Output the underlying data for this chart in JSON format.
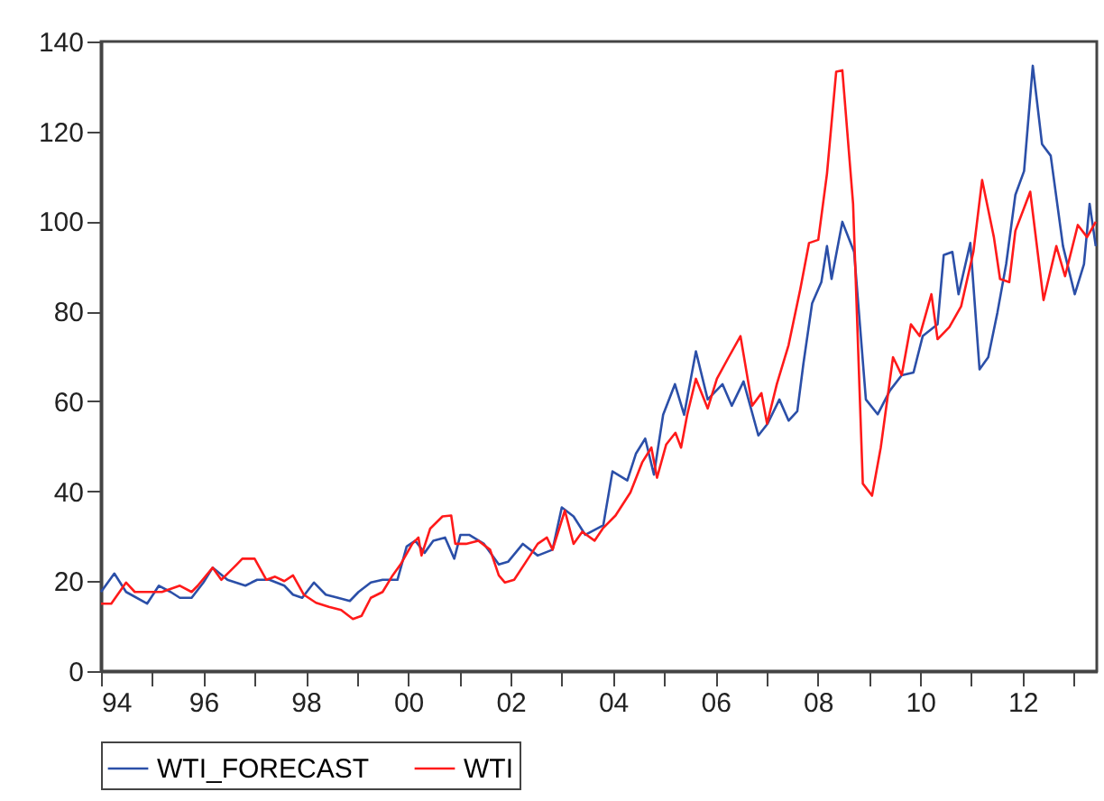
{
  "chart_data": {
    "type": "line",
    "xlim": [
      1994,
      2013.45
    ],
    "ylim": [
      0,
      140
    ],
    "xticks": [
      {
        "value": 1994,
        "label": "94"
      },
      {
        "value": 1995,
        "label": null
      },
      {
        "value": 1996,
        "label": "96"
      },
      {
        "value": 1997,
        "label": null
      },
      {
        "value": 1998,
        "label": "98"
      },
      {
        "value": 1999,
        "label": null
      },
      {
        "value": 2000,
        "label": "00"
      },
      {
        "value": 2001,
        "label": null
      },
      {
        "value": 2002,
        "label": "02"
      },
      {
        "value": 2003,
        "label": null
      },
      {
        "value": 2004,
        "label": "04"
      },
      {
        "value": 2005,
        "label": null
      },
      {
        "value": 2006,
        "label": "06"
      },
      {
        "value": 2007,
        "label": null
      },
      {
        "value": 2008,
        "label": "08"
      },
      {
        "value": 2009,
        "label": null
      },
      {
        "value": 2010,
        "label": "10"
      },
      {
        "value": 2011,
        "label": null
      },
      {
        "value": 2012,
        "label": "12"
      },
      {
        "value": 2013,
        "label": null
      }
    ],
    "yticks": [
      0,
      20,
      40,
      60,
      80,
      100,
      120,
      140
    ],
    "grid": false,
    "legend": "bottom",
    "line_style": "solid",
    "marker": "none",
    "series": [
      {
        "name": "WTI_FORECAST",
        "color": "#2b4fa8",
        "x": [
          1994,
          1994.26,
          1994.49,
          1994.9,
          1995.13,
          1995.36,
          1995.54,
          1995.77,
          1996,
          1996.18,
          1996.47,
          1996.82,
          1996.94,
          1997.05,
          1997.29,
          1997.58,
          1997.75,
          1997.93,
          1998.16,
          1998.39,
          1998.63,
          1998.86,
          1999.03,
          1999.27,
          1999.5,
          1999.79,
          1999.97,
          2000.14,
          2000.32,
          2000.49,
          2000.72,
          2000.9,
          2001.02,
          2001.19,
          2001.48,
          2001.77,
          2001.95,
          2002.24,
          2002.53,
          2002.82,
          2003,
          2003.23,
          2003.46,
          2003.81,
          2003.99,
          2004.28,
          2004.45,
          2004.63,
          2004.8,
          2004.98,
          2005.21,
          2005.39,
          2005.62,
          2005.85,
          2006.14,
          2006.32,
          2006.55,
          2006.84,
          2007.02,
          2007.25,
          2007.43,
          2007.6,
          2007.72,
          2007.89,
          2008.07,
          2008.18,
          2008.27,
          2008.48,
          2008.71,
          2008.94,
          2009.17,
          2009.41,
          2009.64,
          2009.87,
          2010.05,
          2010.34,
          2010.46,
          2010.63,
          2010.75,
          2010.98,
          2011.16,
          2011.33,
          2011.51,
          2011.68,
          2011.86,
          2012.03,
          2012.2,
          2012.38,
          2012.55,
          2012.79,
          2013.02,
          2013.2,
          2013.31,
          2013.43
        ],
        "values": [
          17.6,
          21.7,
          17.6,
          15,
          19,
          17.6,
          16.3,
          16.3,
          19.7,
          23,
          20.3,
          19,
          19.7,
          20.3,
          20.3,
          19,
          17,
          16.3,
          19.7,
          17,
          16.3,
          15.6,
          17.6,
          19.7,
          20.3,
          20.3,
          27.7,
          29,
          26.3,
          29,
          29.7,
          25,
          30.3,
          30.3,
          28.3,
          23.7,
          24.3,
          28.3,
          25.7,
          27,
          36.4,
          34.4,
          30.3,
          32.4,
          44.4,
          42.4,
          48.4,
          51.7,
          43.7,
          57,
          63.8,
          57,
          71.1,
          60.4,
          63.8,
          59,
          64.4,
          52.4,
          55,
          60.4,
          55.7,
          57.8,
          68.4,
          81.8,
          86.5,
          94.5,
          87.2,
          99.9,
          93.2,
          60.4,
          57.1,
          62.4,
          65.8,
          66.4,
          74.5,
          77.1,
          92.5,
          93.2,
          83.8,
          95.2,
          67.1,
          69.8,
          79.8,
          90.5,
          105.9,
          111.2,
          134.6,
          117.2,
          114.6,
          94.5,
          83.8,
          90.5,
          103.9,
          94.5
        ]
      },
      {
        "name": "WTI",
        "color": "#ff1a1a",
        "x": [
          1994,
          1994.2,
          1994.49,
          1994.66,
          1994.9,
          1995.19,
          1995.54,
          1995.77,
          1995.89,
          1996.18,
          1996.35,
          1996.65,
          1996.76,
          1997,
          1997.23,
          1997.4,
          1997.58,
          1997.75,
          1997.96,
          1998.2,
          1998.45,
          1998.69,
          1998.92,
          1999.09,
          1999.27,
          1999.5,
          1999.68,
          1999.85,
          2000.08,
          2000.2,
          2000.26,
          2000.43,
          2000.67,
          2000.84,
          2000.92,
          2001.13,
          2001.37,
          2001.6,
          2001.77,
          2001.89,
          2002.07,
          2002.3,
          2002.53,
          2002.71,
          2002.82,
          2003.06,
          2003.23,
          2003.4,
          2003.64,
          2003.8,
          2004.05,
          2004.34,
          2004.57,
          2004.75,
          2004.86,
          2005.04,
          2005.22,
          2005.33,
          2005.45,
          2005.62,
          2005.85,
          2006.03,
          2006.26,
          2006.49,
          2006.72,
          2006.9,
          2007.01,
          2007.2,
          2007.43,
          2007.66,
          2007.83,
          2008.01,
          2008.18,
          2008.36,
          2008.48,
          2008.69,
          2008.88,
          2009.06,
          2009.23,
          2009.47,
          2009.64,
          2009.82,
          2009.99,
          2010.22,
          2010.34,
          2010.57,
          2010.8,
          2011.04,
          2011.21,
          2011.44,
          2011.56,
          2011.74,
          2011.86,
          2012.15,
          2012.41,
          2012.66,
          2012.83,
          2013.08,
          2013.26,
          2013.43
        ],
        "values": [
          15,
          15,
          19.7,
          17.6,
          17.6,
          17.6,
          19,
          17.6,
          19,
          23,
          20.3,
          23.7,
          25,
          25,
          20.3,
          21,
          20,
          21.3,
          17,
          15.2,
          14.3,
          13.6,
          11.6,
          12.3,
          16.3,
          17.6,
          21,
          23.7,
          28.3,
          29.7,
          25.7,
          31.7,
          34.4,
          34.6,
          28.3,
          28.3,
          29,
          27,
          21.3,
          19.7,
          20.3,
          24.3,
          28.3,
          29.7,
          27,
          35.7,
          28.3,
          31,
          29,
          31.7,
          34.6,
          39.7,
          46.4,
          49.7,
          43,
          50.4,
          53,
          49.7,
          57,
          65,
          58.4,
          65,
          69.8,
          74.5,
          59,
          61.8,
          55,
          63.8,
          72.5,
          85,
          95.2,
          95.9,
          110.6,
          133.3,
          133.6,
          103.9,
          41.7,
          39,
          49.7,
          69.8,
          65.8,
          77.1,
          74.5,
          83.8,
          73.8,
          76.5,
          81.1,
          93.2,
          109.2,
          96.5,
          87.2,
          86.5,
          97.9,
          106.6,
          82.5,
          94.5,
          87.8,
          99.2,
          96.5,
          99.9
        ]
      }
    ]
  }
}
